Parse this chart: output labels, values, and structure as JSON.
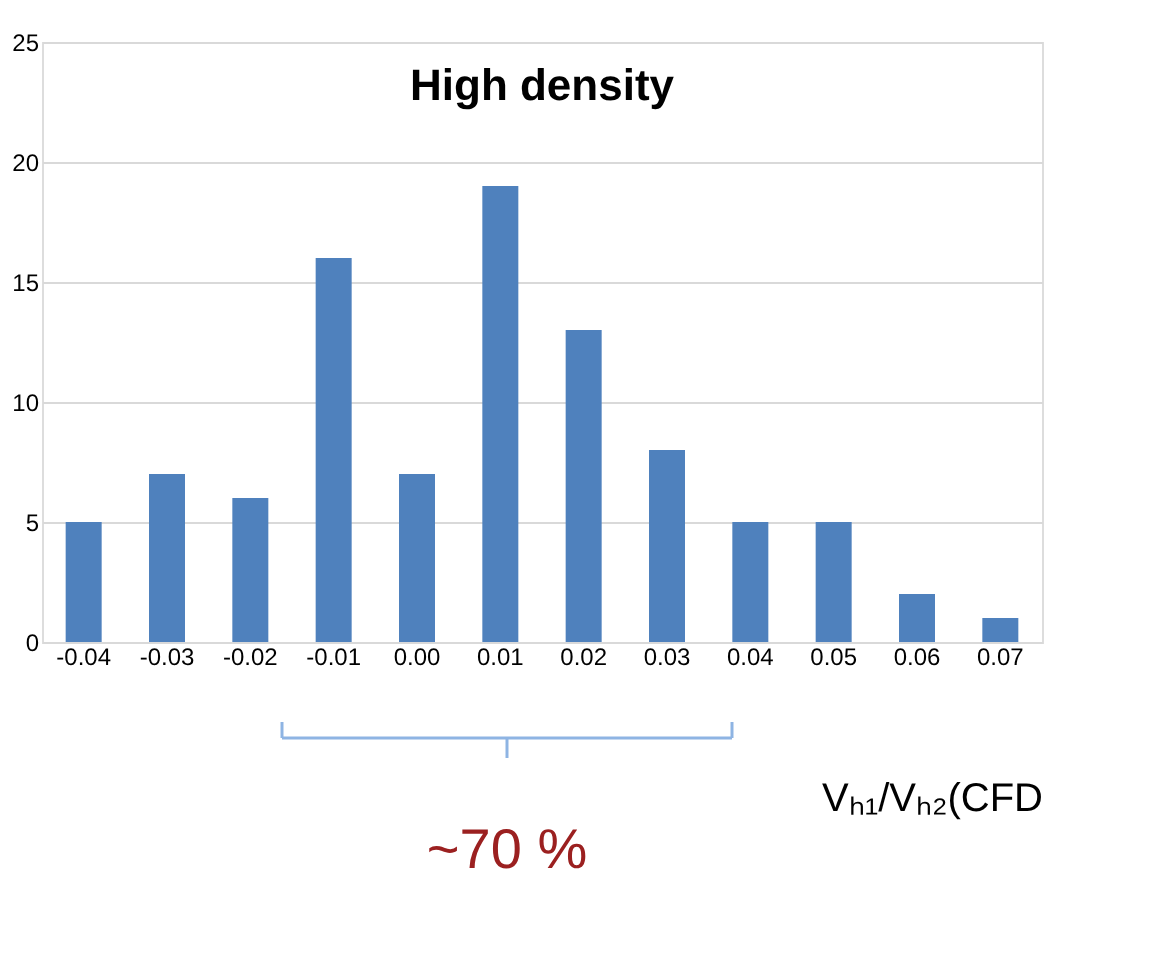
{
  "chart_data": {
    "type": "bar",
    "title": "High density",
    "xlabel": "Vₕ₁/Vₕ₂(CFD",
    "categories": [
      "-0.04",
      "-0.03",
      "-0.02",
      "-0.01",
      "0.00",
      "0.01",
      "0.02",
      "0.03",
      "0.04",
      "0.05",
      "0.06",
      "0.07"
    ],
    "values": [
      5,
      7,
      6,
      16,
      7,
      19,
      13,
      8,
      5,
      5,
      2,
      1
    ],
    "color": "#4f81bd",
    "ylim": [
      0,
      25
    ],
    "yticks": [
      0,
      5,
      10,
      15,
      20,
      25
    ],
    "grid": "y",
    "annotations": [
      "~70 %"
    ]
  }
}
